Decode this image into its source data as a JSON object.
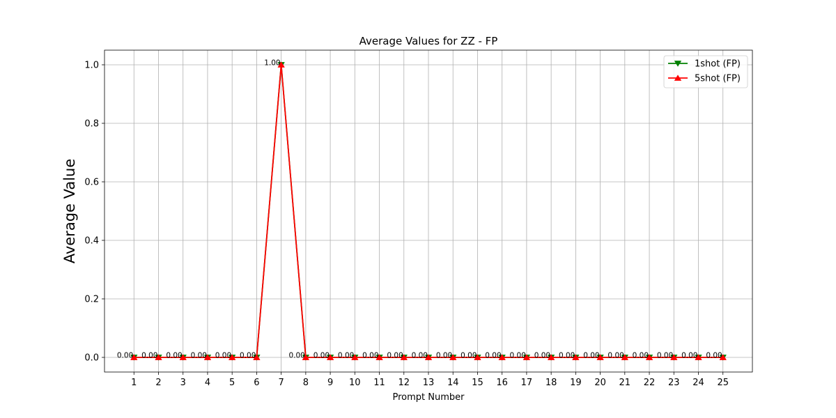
{
  "chart_data": {
    "type": "line",
    "title": "Average Values for ZZ - FP",
    "xlabel": "Prompt Number",
    "ylabel": "Average Value",
    "x": [
      1,
      2,
      3,
      4,
      5,
      6,
      7,
      8,
      9,
      10,
      11,
      12,
      13,
      14,
      15,
      16,
      17,
      18,
      19,
      20,
      21,
      22,
      23,
      24,
      25
    ],
    "xlim": [
      -0.2,
      26.2
    ],
    "ylim": [
      -0.05,
      1.05
    ],
    "yticks": [
      0.0,
      0.2,
      0.4,
      0.6,
      0.8,
      1.0
    ],
    "ytick_labels": [
      "0.0",
      "0.2",
      "0.4",
      "0.6",
      "0.8",
      "1.0"
    ],
    "grid": true,
    "legend_position": "top-right",
    "series": [
      {
        "name": "1shot (FP)",
        "color": "#008000",
        "marker": "triangle-down",
        "values": [
          0,
          0,
          0,
          0,
          0,
          0,
          1,
          0,
          0,
          0,
          0,
          0,
          0,
          0,
          0,
          0,
          0,
          0,
          0,
          0,
          0,
          0,
          0,
          0,
          0
        ]
      },
      {
        "name": "5shot (FP)",
        "color": "#ff0000",
        "marker": "triangle-up",
        "values": [
          0,
          0,
          0,
          0,
          0,
          0,
          1,
          0,
          0,
          0,
          0,
          0,
          0,
          0,
          0,
          0,
          0,
          0,
          0,
          0,
          0,
          0,
          0,
          0,
          0
        ]
      }
    ],
    "data_labels": [
      "0.00",
      "0.00",
      "0.00",
      "0.00",
      "0.00",
      "0.00",
      "1.00",
      "0.00",
      "0.00",
      "0.00",
      "0.00",
      "0.00",
      "0.00",
      "0.00",
      "0.00",
      "0.00",
      "0.00",
      "0.00",
      "0.00",
      "0.00",
      "0.00",
      "0.00",
      "0.00",
      "0.00",
      "0.00"
    ]
  }
}
